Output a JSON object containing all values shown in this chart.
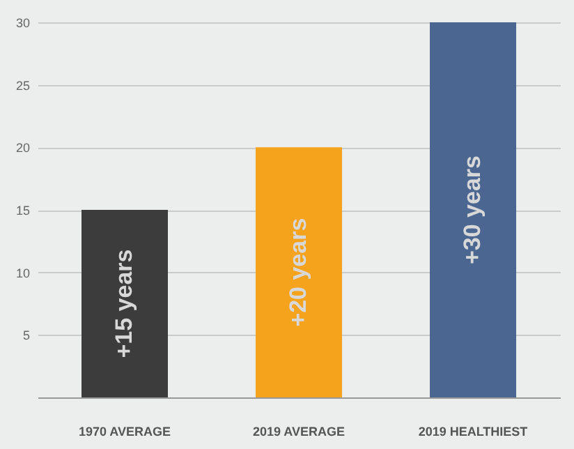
{
  "chart_data": {
    "type": "bar",
    "categories": [
      "1970 AVERAGE",
      "2019 AVERAGE",
      "2019 HEALTHIEST"
    ],
    "values": [
      15,
      20,
      30
    ],
    "colors": [
      "#3c3c3c",
      "#f5a21c",
      "#4b6791"
    ],
    "value_labels": [
      "+15 years",
      "+20 years",
      "+30 years"
    ],
    "ylim": [
      0,
      30
    ],
    "yticks": [
      5,
      10,
      15,
      20,
      25,
      30
    ],
    "grid": "y"
  }
}
